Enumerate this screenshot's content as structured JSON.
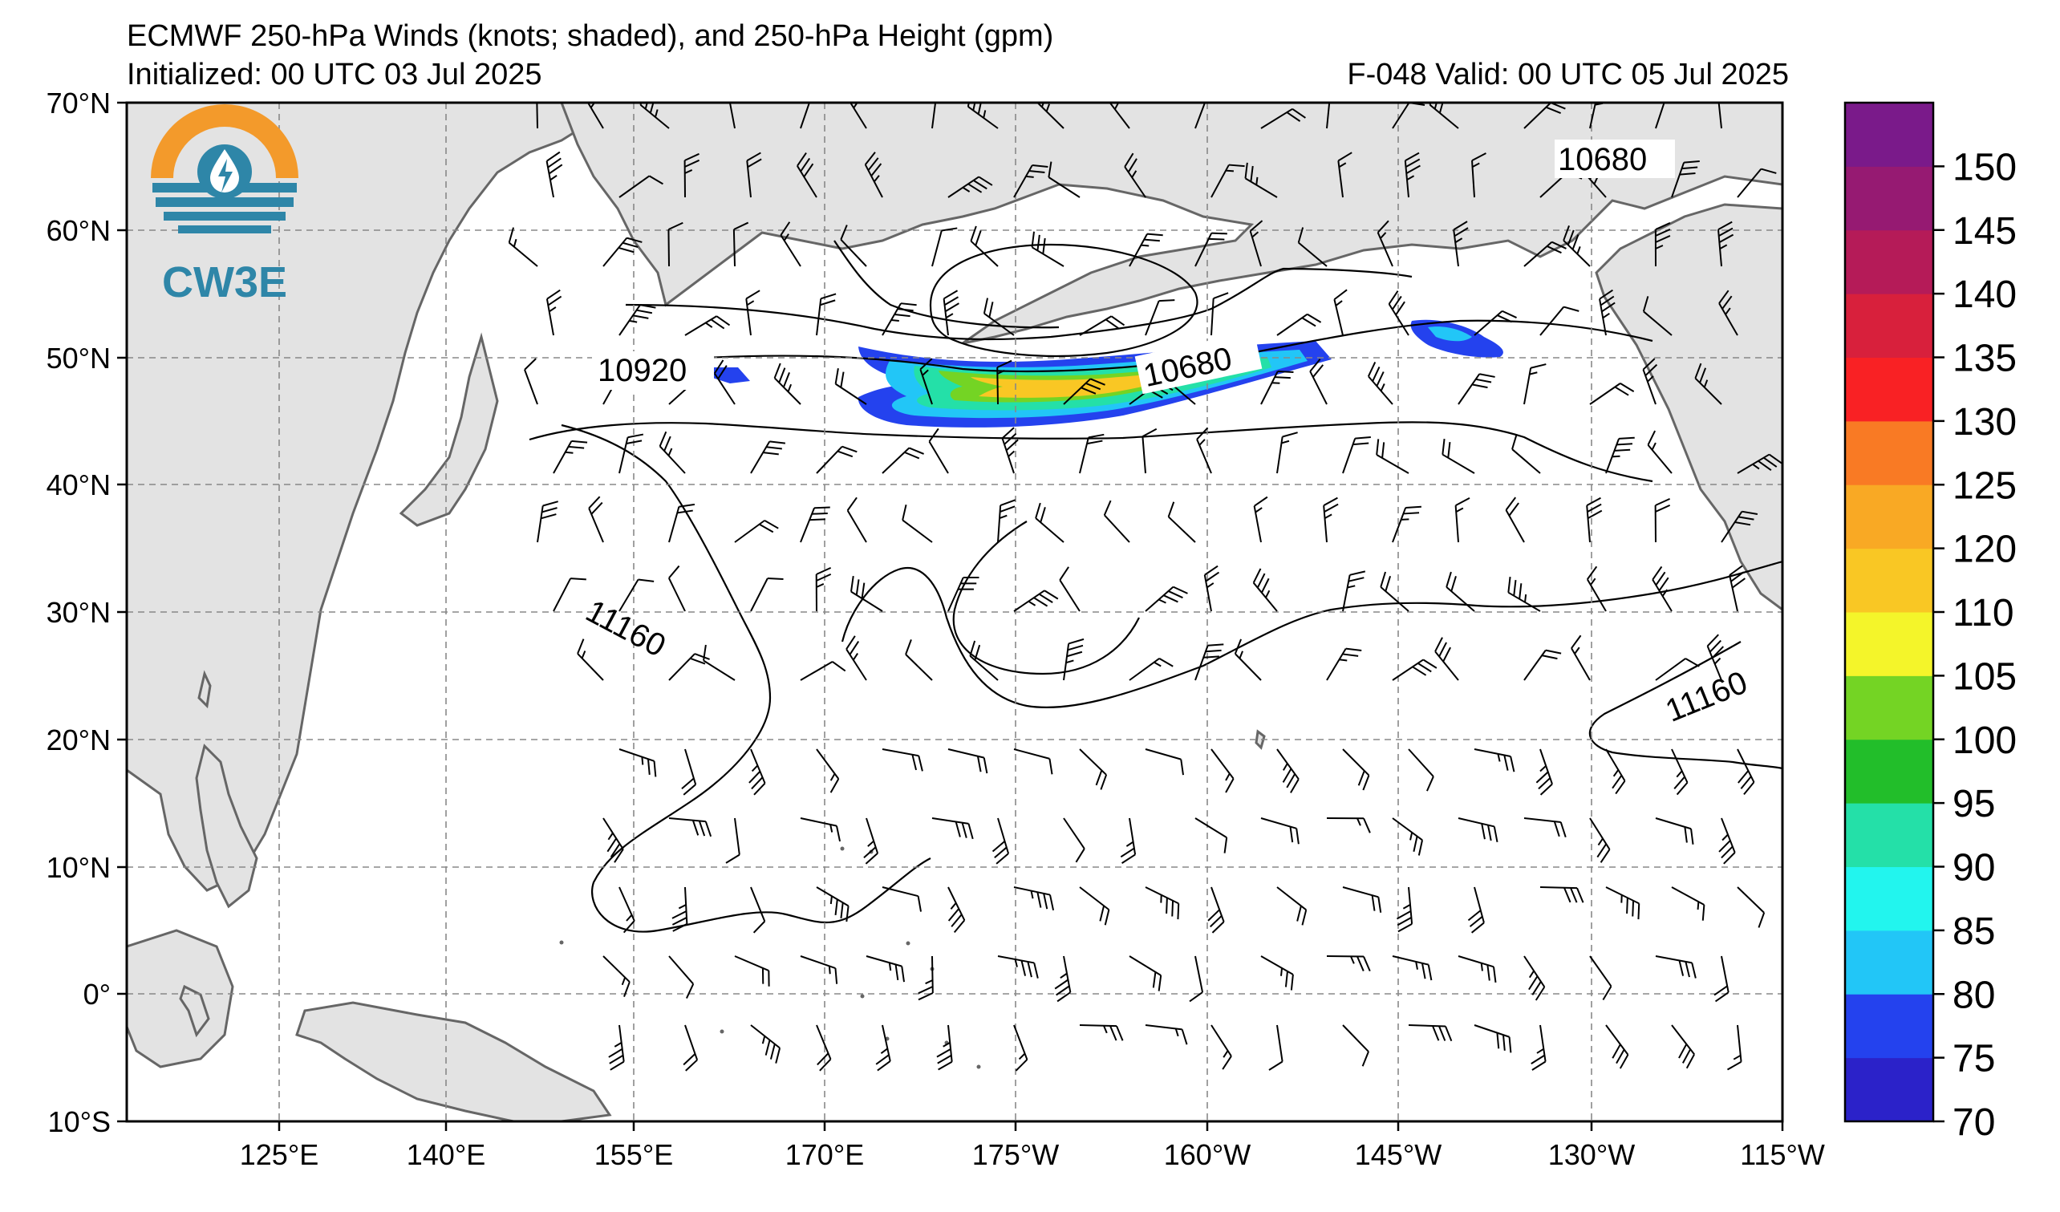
{
  "title": {
    "line1": "ECMWF 250-hPa Winds (knots; shaded), and 250-hPa Height (gpm)",
    "line2": "Initialized: 00 UTC 03 Jul 2025",
    "valid": "F-048  Valid: 00 UTC 05 Jul 2025"
  },
  "logo": {
    "text": "CW3E",
    "colors": {
      "orange": "#F39A2B",
      "teal": "#2E86A8"
    }
  },
  "map": {
    "lat_labels": [
      "70°N",
      "60°N",
      "50°N",
      "40°N",
      "30°N",
      "20°N",
      "10°N",
      "0°",
      "10°S"
    ],
    "lon_labels": [
      "125°E",
      "140°E",
      "155°E",
      "170°E",
      "175°W",
      "160°W",
      "145°W",
      "130°W",
      "115°W"
    ],
    "land_color": "#E3E3E3",
    "contour_labels": [
      "10920",
      "10680",
      "10680",
      "11160",
      "11160"
    ]
  },
  "colorbar": {
    "levels": [
      "70",
      "75",
      "80",
      "85",
      "90",
      "95",
      "100",
      "105",
      "110",
      "120",
      "125",
      "130",
      "135",
      "140",
      "145",
      "150"
    ],
    "colors": [
      "#2B22C9",
      "#2442EE",
      "#22C6F7",
      "#22F5EE",
      "#24E0A8",
      "#22BE2A",
      "#74D424",
      "#F4F52A",
      "#F9C724",
      "#F9A924",
      "#F97A24",
      "#F92124",
      "#D8203C",
      "#B51B58",
      "#961A72",
      "#7A1A8A"
    ]
  }
}
